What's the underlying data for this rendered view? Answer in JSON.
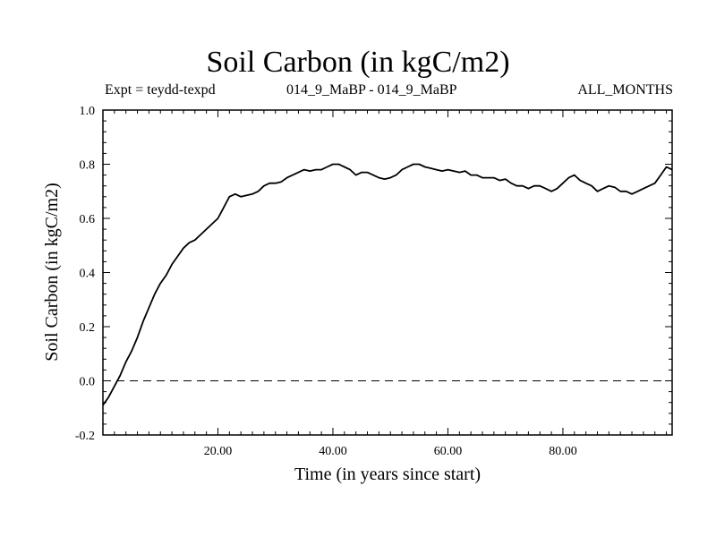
{
  "chart_data": {
    "type": "line",
    "title": "Soil Carbon (in kgC/m2)",
    "subtitle_left": "Expt = teydd-texpd",
    "subtitle_center": "014_9_MaBP - 014_9_MaBP",
    "subtitle_right": "ALL_MONTHS",
    "xlabel": "Time (in years since start)",
    "ylabel": "Soil Carbon (in kgC/m2)",
    "xlim": [
      0,
      99
    ],
    "ylim": [
      -0.2,
      1.0
    ],
    "xticks": [
      20,
      40,
      60,
      80
    ],
    "xtick_labels": [
      "20.00",
      "40.00",
      "60.00",
      "80.00"
    ],
    "yticks": [
      -0.2,
      0.0,
      0.2,
      0.4,
      0.6,
      0.8,
      1.0
    ],
    "ytick_labels": [
      "-0.2",
      "0.0",
      "0.2",
      "0.4",
      "0.6",
      "0.8",
      "1.0"
    ],
    "reference_line": {
      "y": 0.0,
      "style": "dashed"
    },
    "series": [
      {
        "name": "Soil Carbon",
        "x": [
          0,
          1,
          2,
          3,
          4,
          5,
          6,
          7,
          8,
          9,
          10,
          11,
          12,
          13,
          14,
          15,
          16,
          17,
          18,
          19,
          20,
          21,
          22,
          23,
          24,
          25,
          26,
          27,
          28,
          29,
          30,
          31,
          32,
          33,
          34,
          35,
          36,
          37,
          38,
          39,
          40,
          41,
          42,
          43,
          44,
          45,
          46,
          47,
          48,
          49,
          50,
          51,
          52,
          53,
          54,
          55,
          56,
          57,
          58,
          59,
          60,
          61,
          62,
          63,
          64,
          65,
          66,
          67,
          68,
          69,
          70,
          71,
          72,
          73,
          74,
          75,
          76,
          77,
          78,
          79,
          80,
          81,
          82,
          83,
          84,
          85,
          86,
          87,
          88,
          89,
          90,
          91,
          92,
          93,
          94,
          95,
          96,
          97,
          98,
          99
        ],
        "values": [
          -0.09,
          -0.06,
          -0.02,
          0.02,
          0.07,
          0.11,
          0.16,
          0.22,
          0.27,
          0.32,
          0.36,
          0.39,
          0.43,
          0.46,
          0.49,
          0.51,
          0.52,
          0.54,
          0.56,
          0.58,
          0.6,
          0.64,
          0.68,
          0.69,
          0.68,
          0.685,
          0.69,
          0.7,
          0.72,
          0.73,
          0.73,
          0.735,
          0.75,
          0.76,
          0.77,
          0.78,
          0.775,
          0.78,
          0.78,
          0.79,
          0.8,
          0.8,
          0.79,
          0.78,
          0.76,
          0.77,
          0.77,
          0.76,
          0.75,
          0.745,
          0.75,
          0.76,
          0.78,
          0.79,
          0.8,
          0.8,
          0.79,
          0.785,
          0.78,
          0.775,
          0.78,
          0.775,
          0.77,
          0.775,
          0.76,
          0.76,
          0.75,
          0.75,
          0.75,
          0.74,
          0.745,
          0.73,
          0.72,
          0.72,
          0.71,
          0.72,
          0.72,
          0.71,
          0.7,
          0.71,
          0.73,
          0.75,
          0.76,
          0.74,
          0.73,
          0.72,
          0.7,
          0.71,
          0.72,
          0.715,
          0.7,
          0.7,
          0.69,
          0.7,
          0.71,
          0.72,
          0.73,
          0.76,
          0.79,
          0.78
        ]
      }
    ]
  }
}
